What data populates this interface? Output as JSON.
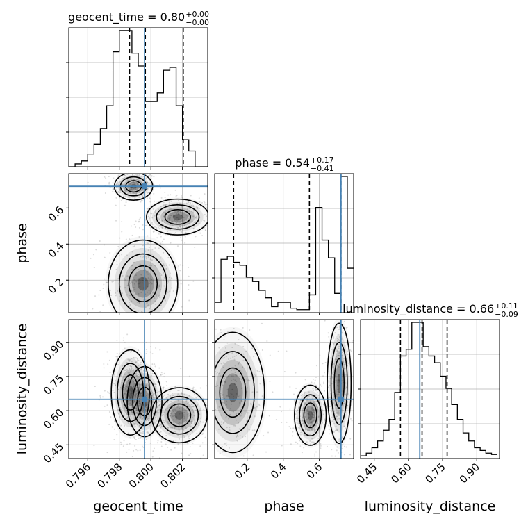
{
  "chart_data": {
    "type": "corner",
    "parameters": [
      "geocent_time",
      "phase",
      "luminosity_distance"
    ],
    "truths": [
      0.7996,
      0.72,
      0.65
    ],
    "titles": [
      {
        "param": "geocent_time",
        "main": "geocent_time = 0.80",
        "sup": "+0.00",
        "sub": "−0.00"
      },
      {
        "param": "phase",
        "main": "phase = 0.54",
        "sup": "+0.17",
        "sub": "−0.41"
      },
      {
        "param": "luminosity_distance",
        "main": "luminosity_distance = 0.66",
        "sup": "+0.11",
        "sub": "−0.09"
      }
    ],
    "axes": {
      "geocent_time": {
        "range": [
          0.7948,
          0.8036
        ],
        "ticks": [
          0.796,
          0.798,
          0.8,
          0.802
        ],
        "tick_labels": [
          "0.796",
          "0.798",
          "0.800",
          "0.802"
        ]
      },
      "phase": {
        "range": [
          0.02,
          0.79
        ],
        "ticks": [
          0.2,
          0.4,
          0.6
        ],
        "tick_labels": [
          "0.2",
          "0.4",
          "0.6"
        ]
      },
      "luminosity_distance": {
        "range": [
          0.39,
          1.0
        ],
        "ticks": [
          0.45,
          0.6,
          0.75,
          0.9
        ],
        "tick_labels": [
          "0.45",
          "0.60",
          "0.75",
          "0.90"
        ]
      }
    },
    "histograms": [
      {
        "param": "geocent_time",
        "bin_edges": [
          0.7948,
          0.7952,
          0.7956,
          0.796,
          0.7964,
          0.7968,
          0.7972,
          0.7976,
          0.798,
          0.7984,
          0.7988,
          0.7992,
          0.7996,
          0.8,
          0.8004,
          0.8008,
          0.8012,
          0.8016,
          0.802,
          0.8024,
          0.8028,
          0.8032,
          0.8036
        ],
        "counts": [
          0,
          2,
          4,
          9,
          16,
          27,
          43,
          81,
          96,
          96,
          80,
          71,
          46,
          46,
          52,
          68,
          70,
          43,
          19,
          11,
          0,
          0
        ],
        "quantiles": [
          0.79865,
          0.79965,
          0.80205
        ]
      },
      {
        "param": "phase",
        "bin_edges": [
          0.02,
          0.055,
          0.09,
          0.125,
          0.16,
          0.195,
          0.23,
          0.265,
          0.3,
          0.335,
          0.37,
          0.405,
          0.44,
          0.475,
          0.51,
          0.545,
          0.58,
          0.615,
          0.65,
          0.685,
          0.72,
          0.755,
          0.79
        ],
        "counts": [
          7,
          36,
          38,
          34,
          32,
          24,
          21,
          15,
          10,
          4,
          7,
          7,
          3,
          2,
          2,
          12,
          71,
          49,
          37,
          13,
          92,
          30
        ],
        "quantiles": [
          0.125,
          0.545,
          0.72
        ]
      },
      {
        "param": "luminosity_distance",
        "bin_edges": [
          0.39,
          0.415,
          0.44,
          0.465,
          0.49,
          0.515,
          0.54,
          0.565,
          0.59,
          0.615,
          0.64,
          0.665,
          0.69,
          0.715,
          0.74,
          0.765,
          0.79,
          0.815,
          0.84,
          0.865,
          0.89,
          0.915,
          0.94,
          0.965,
          0.99
        ],
        "counts": [
          2,
          4,
          8,
          13,
          21,
          29,
          49,
          76,
          81,
          101,
          101,
          83,
          76,
          71,
          61,
          52,
          40,
          29,
          19,
          13,
          8,
          6,
          4,
          3
        ],
        "quantiles": [
          0.565,
          0.66,
          0.77
        ]
      }
    ],
    "pair_plots": [
      {
        "x": "geocent_time",
        "y": "phase",
        "clusters": [
          {
            "center": [
              0.7989,
              0.72
            ],
            "spread": [
              0.00055,
              0.035
            ]
          },
          {
            "center": [
              0.8017,
              0.55
            ],
            "spread": [
              0.0009,
              0.045
            ]
          },
          {
            "center": [
              0.7995,
              0.18
            ],
            "spread": [
              0.001,
              0.11
            ]
          }
        ]
      },
      {
        "x": "geocent_time",
        "y": "luminosity_distance",
        "clusters": [
          {
            "center": [
              0.7987,
              0.68
            ],
            "spread": [
              0.00055,
              0.085
            ]
          },
          {
            "center": [
              0.7996,
              0.64
            ],
            "spread": [
              0.0005,
              0.07
            ]
          },
          {
            "center": [
              0.8018,
              0.58
            ],
            "spread": [
              0.0008,
              0.055
            ]
          }
        ]
      },
      {
        "x": "phase",
        "y": "luminosity_distance",
        "clusters": [
          {
            "center": [
              0.12,
              0.68
            ],
            "spread": [
              0.08,
              0.12
            ]
          },
          {
            "center": [
              0.55,
              0.58
            ],
            "spread": [
              0.04,
              0.06
            ]
          },
          {
            "center": [
              0.71,
              0.72
            ],
            "spread": [
              0.03,
              0.12
            ]
          }
        ]
      }
    ],
    "colors": {
      "truth": "#4682b4",
      "hist": "#000000",
      "quantile": "#000000",
      "grid": "#b0b0b0",
      "contour": "#000000",
      "density_dark": "#000000",
      "scatter": "#999999"
    },
    "grid": true,
    "layout": "lower-triangle"
  }
}
